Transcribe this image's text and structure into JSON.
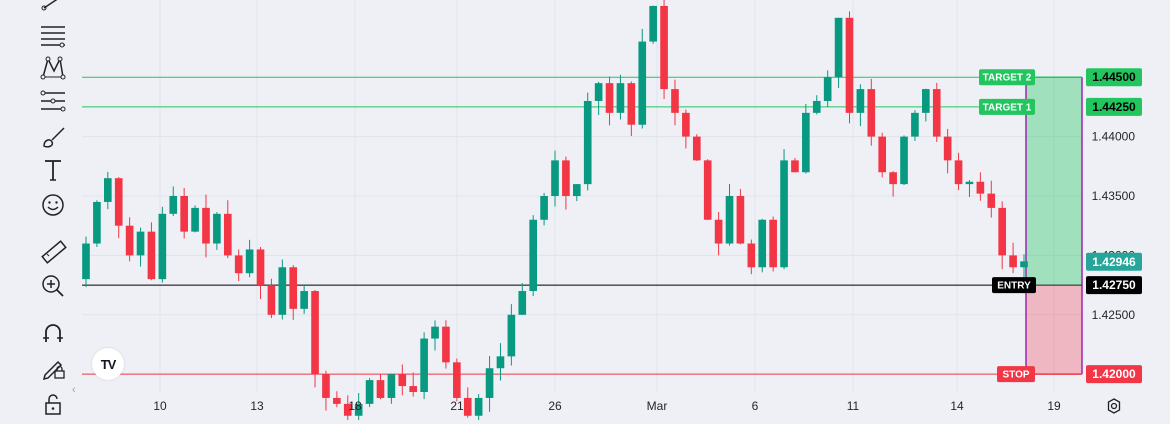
{
  "toolbar": {
    "tools": [
      {
        "name": "trend-line-icon"
      },
      {
        "name": "fib-retracement-icon"
      },
      {
        "name": "pattern-icon"
      },
      {
        "name": "prediction-icon"
      },
      {
        "name": "brush-icon"
      },
      {
        "name": "text-icon"
      },
      {
        "name": "emoji-icon"
      },
      {
        "name": "ruler-icon"
      },
      {
        "name": "zoom-in-icon"
      },
      {
        "name": "magnet-icon"
      },
      {
        "name": "lock-drawing-icon"
      },
      {
        "name": "unlock-icon"
      }
    ]
  },
  "logo": "TV",
  "settings_icon": "gear-icon",
  "chart_data": {
    "type": "candlestick",
    "x_ticks": [
      "10",
      "13",
      "18",
      "21",
      "26",
      "Mar",
      "6",
      "11",
      "14",
      "19"
    ],
    "y_ticks": [
      "1.42500",
      "1.43000",
      "1.43500",
      "1.44000"
    ],
    "ylim": [
      1.4185,
      1.4515
    ],
    "colors": {
      "up": "#089981",
      "down": "#f23645",
      "grid": "#e0e3eb"
    },
    "levels": [
      {
        "label": "TARGET 2",
        "value": 1.445,
        "price_label": "1.44500",
        "color": "#22c55e"
      },
      {
        "label": "TARGET 1",
        "value": 1.4425,
        "price_label": "1.44250",
        "color": "#22c55e"
      },
      {
        "label": "ENTRY",
        "value": 1.4275,
        "price_label": "1.42750",
        "color": "#000000"
      },
      {
        "label": "STOP",
        "value": 1.42,
        "price_label": "1.42000",
        "color": "#f23645"
      }
    ],
    "current_price": {
      "value": 1.42946,
      "label": "1.42946",
      "color": "#26a69a"
    },
    "candle_seed": [
      [
        1.428,
        1.431
      ],
      [
        1.431,
        1.4345
      ],
      [
        1.4345,
        1.4365
      ],
      [
        1.4365,
        1.4325
      ],
      [
        1.4325,
        1.43
      ],
      [
        1.43,
        1.432
      ],
      [
        1.432,
        1.428
      ],
      [
        1.428,
        1.4335
      ],
      [
        1.4335,
        1.435
      ],
      [
        1.435,
        1.432
      ],
      [
        1.432,
        1.434
      ],
      [
        1.434,
        1.431
      ],
      [
        1.431,
        1.4335
      ],
      [
        1.4335,
        1.43
      ],
      [
        1.43,
        1.4285
      ],
      [
        1.4285,
        1.4305
      ],
      [
        1.4305,
        1.4275
      ],
      [
        1.4275,
        1.425
      ],
      [
        1.425,
        1.429
      ],
      [
        1.429,
        1.4255
      ],
      [
        1.4255,
        1.427
      ],
      [
        1.427,
        1.42
      ],
      [
        1.42,
        1.418
      ],
      [
        1.418,
        1.4175
      ],
      [
        1.4175,
        1.4165
      ],
      [
        1.4165,
        1.4175
      ],
      [
        1.4175,
        1.4195
      ],
      [
        1.4195,
        1.418
      ],
      [
        1.418,
        1.42
      ],
      [
        1.42,
        1.419
      ],
      [
        1.419,
        1.4185
      ],
      [
        1.4185,
        1.423
      ],
      [
        1.423,
        1.424
      ],
      [
        1.424,
        1.421
      ],
      [
        1.421,
        1.418
      ],
      [
        1.418,
        1.4165
      ],
      [
        1.4165,
        1.418
      ],
      [
        1.418,
        1.4205
      ],
      [
        1.4205,
        1.4215
      ],
      [
        1.4215,
        1.425
      ],
      [
        1.425,
        1.427
      ],
      [
        1.427,
        1.433
      ],
      [
        1.433,
        1.435
      ],
      [
        1.435,
        1.438
      ],
      [
        1.438,
        1.435
      ],
      [
        1.435,
        1.436
      ],
      [
        1.436,
        1.443
      ],
      [
        1.443,
        1.4445
      ],
      [
        1.4445,
        1.442
      ],
      [
        1.442,
        1.4445
      ],
      [
        1.4445,
        1.441
      ],
      [
        1.441,
        1.448
      ],
      [
        1.448,
        1.451
      ],
      [
        1.451,
        1.444
      ],
      [
        1.444,
        1.442
      ],
      [
        1.442,
        1.44
      ],
      [
        1.44,
        1.438
      ],
      [
        1.438,
        1.433
      ],
      [
        1.433,
        1.431
      ],
      [
        1.431,
        1.435
      ],
      [
        1.435,
        1.431
      ],
      [
        1.431,
        1.429
      ],
      [
        1.429,
        1.433
      ],
      [
        1.433,
        1.429
      ],
      [
        1.429,
        1.438
      ],
      [
        1.438,
        1.437
      ],
      [
        1.437,
        1.442
      ],
      [
        1.442,
        1.443
      ],
      [
        1.443,
        1.445
      ],
      [
        1.445,
        1.45
      ],
      [
        1.45,
        1.442
      ],
      [
        1.442,
        1.444
      ],
      [
        1.444,
        1.44
      ],
      [
        1.44,
        1.437
      ],
      [
        1.437,
        1.436
      ],
      [
        1.436,
        1.44
      ],
      [
        1.44,
        1.442
      ],
      [
        1.442,
        1.444
      ],
      [
        1.444,
        1.44
      ],
      [
        1.44,
        1.438
      ],
      [
        1.438,
        1.436
      ],
      [
        1.436,
        1.4362
      ],
      [
        1.4362,
        1.4352
      ],
      [
        1.4352,
        1.434
      ],
      [
        1.434,
        1.43
      ],
      [
        1.43,
        1.429
      ],
      [
        1.429,
        1.4295
      ]
    ]
  }
}
